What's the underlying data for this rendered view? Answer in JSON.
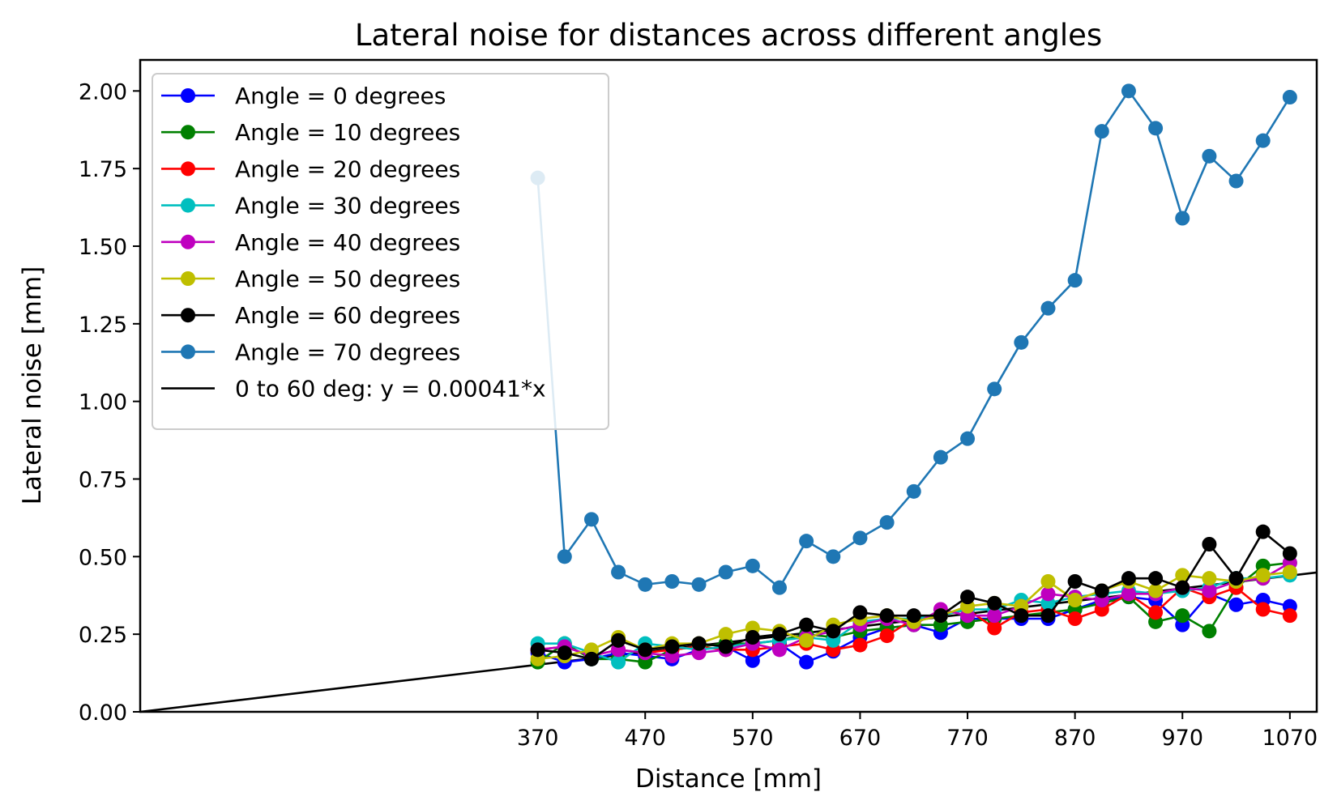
{
  "chart_data": {
    "type": "line",
    "title": "Lateral noise for distances across different angles",
    "xlabel": "Distance [mm]",
    "ylabel": "Lateral noise [mm]",
    "xlim": [
      0,
      1095
    ],
    "ylim": [
      0,
      2.1
    ],
    "x_ticks": [
      370,
      470,
      570,
      670,
      770,
      870,
      970,
      1070
    ],
    "x_tick_labels": [
      "370",
      "470",
      "570",
      "670",
      "770",
      "870",
      "970",
      "1070"
    ],
    "y_ticks": [
      0,
      0.25,
      0.5,
      0.75,
      1.0,
      1.25,
      1.5,
      1.75,
      2.0
    ],
    "y_tick_labels": [
      "0.00",
      "0.25",
      "0.50",
      "0.75",
      "1.00",
      "1.25",
      "1.50",
      "1.75",
      "2.00"
    ],
    "grid": false,
    "legend_position": "top-left",
    "x": [
      370,
      395,
      420,
      445,
      470,
      495,
      520,
      545,
      570,
      595,
      620,
      645,
      670,
      695,
      720,
      745,
      770,
      795,
      820,
      845,
      870,
      895,
      920,
      945,
      970,
      995,
      1020,
      1045,
      1070
    ],
    "series": [
      {
        "name": "Angle = 0 degrees",
        "color": "#0000ff",
        "values": [
          0.19,
          0.16,
          0.17,
          0.19,
          0.18,
          0.17,
          0.2,
          0.21,
          0.165,
          0.22,
          0.16,
          0.195,
          0.24,
          0.27,
          0.28,
          0.255,
          0.3,
          0.3,
          0.3,
          0.3,
          0.33,
          0.36,
          0.37,
          0.36,
          0.28,
          0.38,
          0.345,
          0.36,
          0.34
        ]
      },
      {
        "name": "Angle = 10 degrees",
        "color": "#008000",
        "values": [
          0.16,
          0.22,
          0.17,
          0.17,
          0.16,
          0.2,
          0.21,
          0.22,
          0.22,
          0.23,
          0.25,
          0.24,
          0.26,
          0.27,
          0.28,
          0.28,
          0.29,
          0.3,
          0.31,
          0.32,
          0.33,
          0.35,
          0.37,
          0.29,
          0.31,
          0.26,
          0.4,
          0.47,
          0.48
        ]
      },
      {
        "name": "Angle = 20 degrees",
        "color": "#ff0000",
        "values": [
          0.2,
          0.21,
          0.18,
          0.2,
          0.19,
          0.2,
          0.21,
          0.2,
          0.2,
          0.21,
          0.22,
          0.2,
          0.215,
          0.245,
          0.3,
          0.31,
          0.33,
          0.27,
          0.32,
          0.33,
          0.3,
          0.33,
          0.38,
          0.32,
          0.4,
          0.37,
          0.4,
          0.33,
          0.31
        ]
      },
      {
        "name": "Angle = 30 degrees",
        "color": "#00bfbf",
        "values": [
          0.22,
          0.22,
          0.19,
          0.16,
          0.22,
          0.21,
          0.2,
          0.21,
          0.22,
          0.23,
          0.24,
          0.23,
          0.29,
          0.3,
          0.3,
          0.31,
          0.33,
          0.33,
          0.36,
          0.35,
          0.37,
          0.38,
          0.39,
          0.38,
          0.39,
          0.4,
          0.43,
          0.43,
          0.44
        ]
      },
      {
        "name": "Angle = 40 degrees",
        "color": "#bf00bf",
        "values": [
          0.2,
          0.21,
          0.18,
          0.2,
          0.19,
          0.18,
          0.19,
          0.2,
          0.22,
          0.2,
          0.24,
          0.26,
          0.28,
          0.3,
          0.28,
          0.33,
          0.31,
          0.31,
          0.34,
          0.38,
          0.37,
          0.36,
          0.38,
          0.38,
          0.4,
          0.39,
          0.42,
          0.43,
          0.48
        ]
      },
      {
        "name": "Angle = 50 degrees",
        "color": "#bfbf00",
        "values": [
          0.17,
          0.18,
          0.2,
          0.24,
          0.2,
          0.22,
          0.22,
          0.25,
          0.27,
          0.26,
          0.23,
          0.28,
          0.3,
          0.31,
          0.29,
          0.31,
          0.34,
          0.35,
          0.34,
          0.42,
          0.36,
          0.39,
          0.42,
          0.39,
          0.44,
          0.43,
          0.42,
          0.44,
          0.45
        ]
      },
      {
        "name": "Angle = 60 degrees",
        "color": "#000000",
        "values": [
          0.2,
          0.19,
          0.17,
          0.23,
          0.2,
          0.21,
          0.22,
          0.21,
          0.24,
          0.25,
          0.28,
          0.26,
          0.32,
          0.31,
          0.31,
          0.31,
          0.37,
          0.35,
          0.31,
          0.31,
          0.42,
          0.39,
          0.43,
          0.43,
          0.4,
          0.54,
          0.43,
          0.58,
          0.51
        ]
      },
      {
        "name": "Angle = 70 degrees",
        "color": "#1f77b4",
        "values": [
          1.72,
          0.5,
          0.62,
          0.45,
          0.41,
          0.42,
          0.41,
          0.45,
          0.47,
          0.4,
          0.55,
          0.5,
          0.56,
          0.61,
          0.71,
          0.82,
          0.88,
          1.04,
          1.19,
          1.3,
          1.39,
          1.87,
          2.0,
          1.88,
          1.59,
          1.79,
          1.71,
          1.84,
          1.98
        ]
      }
    ],
    "fit_line": {
      "name": "0 to 60 deg: y = 0.00041*x",
      "color": "#000000",
      "slope": 0.00041
    }
  }
}
